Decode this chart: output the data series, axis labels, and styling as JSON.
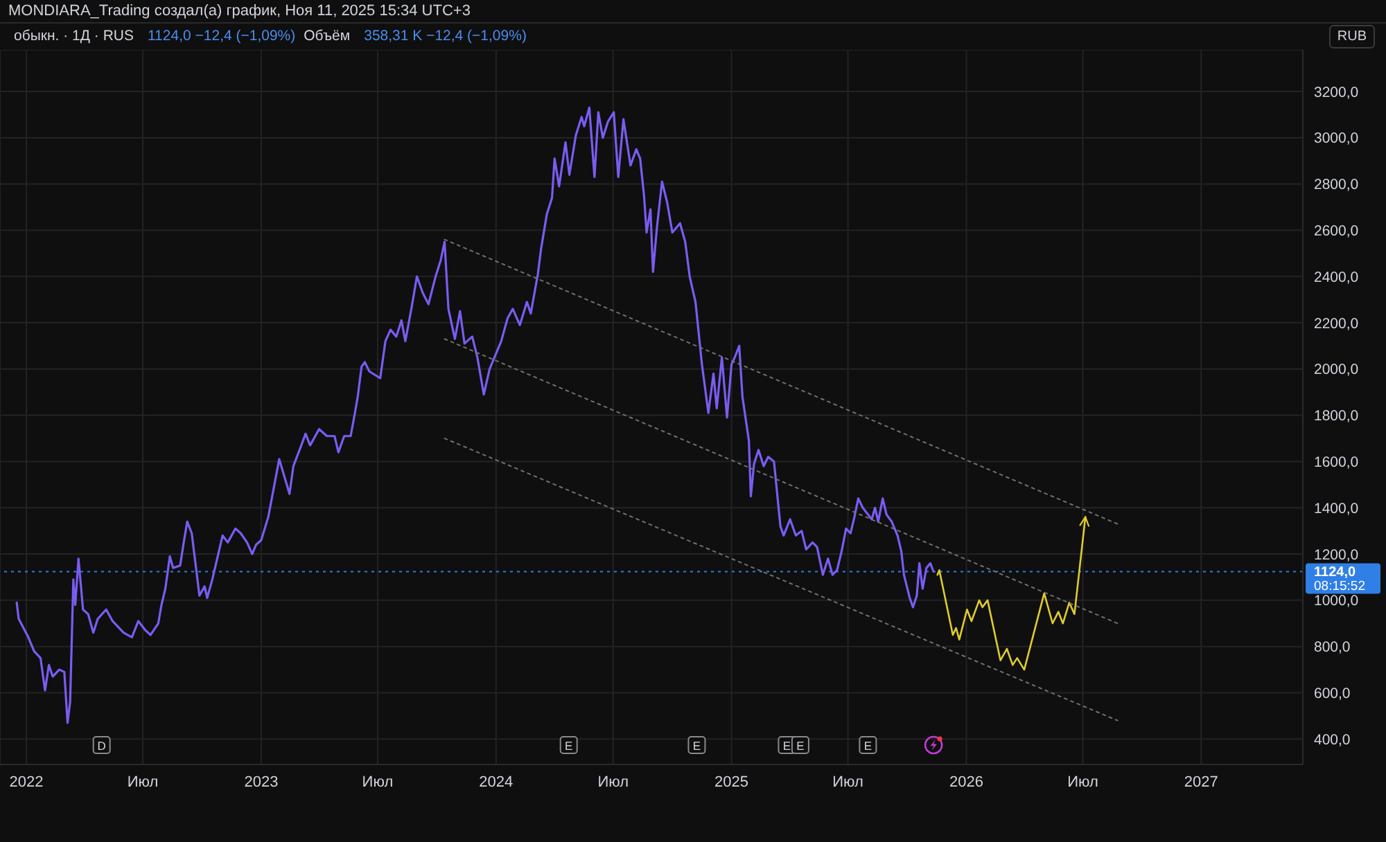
{
  "chart_data": {
    "type": "line",
    "title": "обыкн. · 1Д · RUS",
    "subtitle": "MONDIARA_Trading создал(а) график, Ноя 11, 2025 15:34 UTC+3",
    "ylabel": "RUB",
    "xlim": [
      "2021-11-21",
      "2027-06-08"
    ],
    "xticks": [
      "2022",
      {
        "value": "2022-07",
        "label": "Июл"
      },
      "2023",
      {
        "value": "2023-07",
        "label": "Июл"
      },
      "2024",
      {
        "value": "2024-07",
        "label": "Июл"
      },
      "2025",
      {
        "value": "2025-07",
        "label": "Июл"
      },
      "2026",
      {
        "value": "2026-07",
        "label": "Июл"
      },
      "2027"
    ],
    "ylim": [
      290,
      3380
    ],
    "yticks": [
      {
        "value": 400,
        "label": "400,0"
      },
      {
        "value": 600,
        "label": "600,0"
      },
      {
        "value": 800,
        "label": "800,0"
      },
      {
        "value": 1000,
        "label": "1000,0"
      },
      {
        "value": 1200,
        "label": "1200,0"
      },
      {
        "value": 1400,
        "label": "1400,0"
      },
      {
        "value": 1600,
        "label": "1600,0"
      },
      {
        "value": 1800,
        "label": "1800,0"
      },
      {
        "value": 2000,
        "label": "2000,0"
      },
      {
        "value": 2200,
        "label": "2200,0"
      },
      {
        "value": 2400,
        "label": "2400,0"
      },
      {
        "value": 2600,
        "label": "2600,0"
      },
      {
        "value": 2800,
        "label": "2800,0"
      },
      {
        "value": 3000,
        "label": "3000,0"
      },
      {
        "value": 3200,
        "label": "3200,0"
      }
    ],
    "grid": true,
    "series": [
      {
        "color": "#7a5cf2",
        "x": [
          "2021-12-17",
          "2021-12-20",
          "2022-01-04",
          "2022-01-13",
          "2022-01-23",
          "2022-01-30",
          "2022-02-05",
          "2022-02-11",
          "2022-02-21",
          "2022-03-01",
          "2022-03-06",
          "2022-03-10",
          "2022-03-15",
          "2022-03-18",
          "2022-03-23",
          "2022-03-30",
          "2022-04-07",
          "2022-04-15",
          "2022-04-22",
          "2022-05-05",
          "2022-05-15",
          "2022-06-01",
          "2022-06-14",
          "2022-06-24",
          "2022-07-05",
          "2022-07-13",
          "2022-07-25",
          "2022-07-30",
          "2022-08-05",
          "2022-08-12",
          "2022-08-17",
          "2022-08-28",
          "2022-09-02",
          "2022-09-08",
          "2022-09-15",
          "2022-09-27",
          "2022-10-05",
          "2022-10-09",
          "2022-10-17",
          "2022-11-02",
          "2022-11-10",
          "2022-11-22",
          "2022-11-30",
          "2022-12-10",
          "2022-12-18",
          "2022-12-24",
          "2023-01-01",
          "2023-01-12",
          "2023-01-29",
          "2023-02-14",
          "2023-02-20",
          "2023-03-03",
          "2023-03-11",
          "2023-03-18",
          "2023-04-01",
          "2023-04-13",
          "2023-04-25",
          "2023-05-01",
          "2023-05-10",
          "2023-05-20",
          "2023-05-26",
          "2023-05-31",
          "2023-06-06",
          "2023-06-11",
          "2023-06-18",
          "2023-07-05",
          "2023-07-13",
          "2023-07-21",
          "2023-07-30",
          "2023-08-07",
          "2023-08-13",
          "2023-08-23",
          "2023-08-31",
          "2023-09-09",
          "2023-09-18",
          "2023-09-29",
          "2023-10-07",
          "2023-10-13",
          "2023-10-19",
          "2023-10-29",
          "2023-11-06",
          "2023-11-13",
          "2023-11-25",
          "2023-12-03",
          "2023-12-13",
          "2023-12-22",
          "2024-01-09",
          "2024-01-19",
          "2024-01-27",
          "2024-02-07",
          "2024-02-18",
          "2024-02-24",
          "2024-03-06",
          "2024-03-11",
          "2024-03-20",
          "2024-03-28",
          "2024-04-01",
          "2024-04-08",
          "2024-04-18",
          "2024-04-24",
          "2024-05-04",
          "2024-05-13",
          "2024-05-17",
          "2024-05-25",
          "2024-06-02",
          "2024-06-08",
          "2024-06-15",
          "2024-06-23",
          "2024-07-02",
          "2024-07-09",
          "2024-07-17",
          "2024-07-28",
          "2024-08-06",
          "2024-08-12",
          "2024-08-18",
          "2024-08-22",
          "2024-08-28",
          "2024-09-01",
          "2024-09-07",
          "2024-09-15",
          "2024-09-23",
          "2024-10-01",
          "2024-10-13",
          "2024-10-21",
          "2024-10-28",
          "2024-11-06",
          "2024-11-16",
          "2024-11-26",
          "2024-12-04",
          "2024-12-09",
          "2024-12-17",
          "2024-12-25",
          "2025-01-01",
          "2025-01-06",
          "2025-01-13",
          "2025-01-18",
          "2025-01-28",
          "2025-01-31",
          "2025-02-05",
          "2025-02-12",
          "2025-02-20",
          "2025-02-27",
          "2025-03-08",
          "2025-03-18",
          "2025-03-23",
          "2025-04-02",
          "2025-04-11",
          "2025-04-20",
          "2025-04-27",
          "2025-05-07",
          "2025-05-14",
          "2025-05-23",
          "2025-05-31",
          "2025-06-07",
          "2025-06-14",
          "2025-06-21",
          "2025-06-28",
          "2025-07-05",
          "2025-07-11",
          "2025-07-17",
          "2025-07-24",
          "2025-08-07",
          "2025-08-12",
          "2025-08-17",
          "2025-08-24",
          "2025-08-30",
          "2025-09-07",
          "2025-09-16",
          "2025-09-22",
          "2025-09-26",
          "2025-10-05",
          "2025-10-10",
          "2025-10-16",
          "2025-10-20",
          "2025-10-25",
          "2025-10-31",
          "2025-11-06",
          "2025-11-11"
        ],
        "values": [
          990,
          920,
          840,
          780,
          750,
          610,
          720,
          670,
          700,
          690,
          470,
          560,
          1090,
          980,
          1180,
          960,
          940,
          860,
          920,
          960,
          910,
          860,
          840,
          910,
          870,
          850,
          900,
          980,
          1050,
          1190,
          1140,
          1150,
          1240,
          1340,
          1290,
          1020,
          1060,
          1010,
          1090,
          1280,
          1250,
          1310,
          1290,
          1250,
          1200,
          1240,
          1260,
          1360,
          1610,
          1460,
          1580,
          1660,
          1720,
          1670,
          1740,
          1710,
          1710,
          1640,
          1710,
          1710,
          1800,
          1880,
          2010,
          2030,
          1990,
          1960,
          2120,
          2170,
          2140,
          2210,
          2120,
          2270,
          2400,
          2330,
          2280,
          2400,
          2470,
          2550,
          2260,
          2130,
          2250,
          2110,
          2140,
          2050,
          1890,
          2000,
          2120,
          2220,
          2260,
          2190,
          2290,
          2240,
          2410,
          2520,
          2670,
          2740,
          2910,
          2790,
          2980,
          2840,
          3010,
          3090,
          3050,
          3130,
          2830,
          3110,
          3000,
          3070,
          3110,
          2830,
          3080,
          2880,
          2950,
          2910,
          2750,
          2590,
          2690,
          2420,
          2610,
          2810,
          2720,
          2590,
          2630,
          2550,
          2400,
          2290,
          2020,
          1810,
          1980,
          1830,
          2050,
          1790,
          2020,
          2050,
          2100,
          1880,
          1690,
          1450,
          1590,
          1650,
          1580,
          1620,
          1600,
          1320,
          1280,
          1350,
          1280,
          1300,
          1220,
          1250,
          1230,
          1110,
          1180,
          1110,
          1130,
          1210,
          1310,
          1290,
          1360,
          1440,
          1400,
          1350,
          1400,
          1340,
          1440,
          1370,
          1340,
          1280,
          1210,
          1110,
          1010,
          970,
          1020,
          1160,
          1050,
          1140,
          1160,
          1124
        ]
      },
      {
        "color": "#e0cc2e",
        "x": [
          "2025-11-17",
          "2025-11-20",
          "2025-12-11",
          "2025-12-16",
          "2025-12-21",
          "2026-01-02",
          "2026-01-09",
          "2026-01-21",
          "2026-01-26",
          "2026-02-03",
          "2026-02-23",
          "2026-03-05",
          "2026-03-14",
          "2026-03-21",
          "2026-04-01",
          "2026-05-02",
          "2026-05-15",
          "2026-05-24",
          "2026-05-31",
          "2026-06-10",
          "2026-06-18",
          "2026-07-05"
        ],
        "values": [
          1110,
          1130,
          850,
          880,
          830,
          960,
          910,
          1000,
          970,
          1000,
          740,
          790,
          720,
          750,
          700,
          1030,
          900,
          950,
          900,
          990,
          940,
          1360
        ]
      },
      {
        "color": "#707070",
        "line_style": "dotted",
        "x": [
          "2023-10-13",
          "2026-08-24"
        ],
        "values": [
          2560,
          1330
        ]
      },
      {
        "color": "#707070",
        "line_style": "dotted",
        "x": [
          "2023-10-13",
          "2026-08-24"
        ],
        "values": [
          2130,
          900
        ]
      },
      {
        "color": "#707070",
        "line_style": "dotted",
        "x": [
          "2023-10-13",
          "2026-08-24"
        ],
        "values": [
          1700,
          480
        ]
      }
    ],
    "ref_lines": [
      {
        "axis": "y",
        "value": 1124,
        "label": "1124,0",
        "color": "#2f7fe6",
        "line_style": "dotted"
      }
    ],
    "annotations": [
      "1124,0  −12,4 (−1,09%)",
      "Объём",
      "358,31 K  −12,4 (−1,09%)",
      "08:15:52",
      {
        "text": "D",
        "x": "2022-04-28"
      },
      {
        "text": "E",
        "x": "2024-04-23"
      },
      {
        "text": "E",
        "x": "2024-11-08"
      },
      {
        "text": "E",
        "x": "2025-03-28"
      },
      {
        "text": "E",
        "x": "2025-04-18"
      },
      {
        "text": "E",
        "x": "2025-08-01"
      }
    ]
  }
}
